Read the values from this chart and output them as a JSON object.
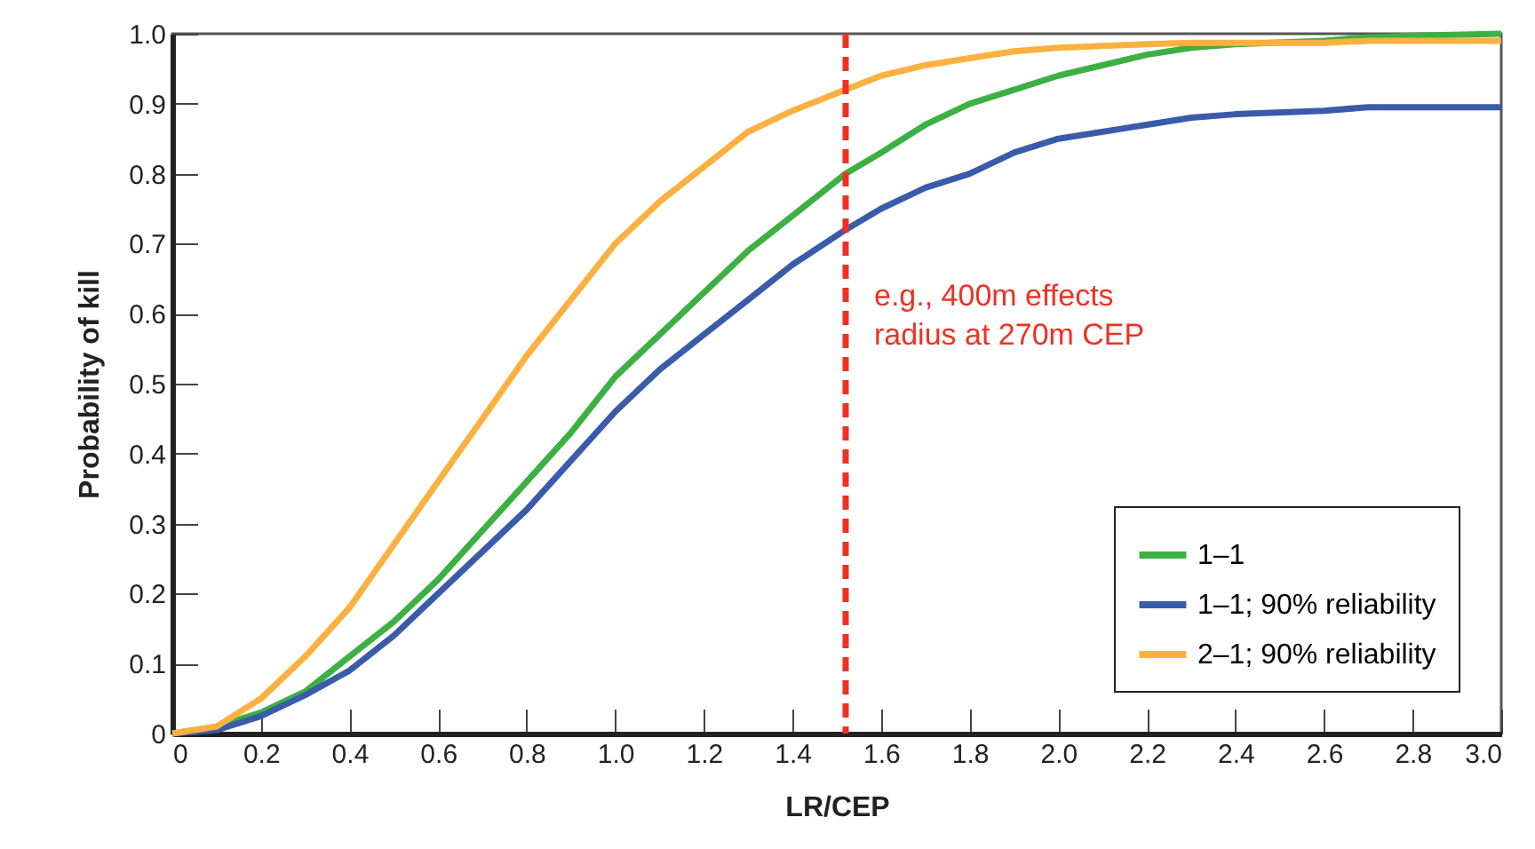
{
  "chart_data": {
    "type": "line",
    "xlabel": "LR/CEP",
    "ylabel": "Probability of kill",
    "x": [
      0,
      0.1,
      0.2,
      0.3,
      0.4,
      0.5,
      0.6,
      0.7,
      0.8,
      0.9,
      1.0,
      1.1,
      1.2,
      1.3,
      1.4,
      1.52,
      1.6,
      1.7,
      1.8,
      1.9,
      2.0,
      2.2,
      2.3,
      2.4,
      2.6,
      2.7,
      2.8,
      3.0
    ],
    "series": [
      {
        "name": "1–1",
        "color": "#3cb043",
        "values": [
          0,
          0.01,
          0.03,
          0.06,
          0.11,
          0.16,
          0.22,
          0.29,
          0.36,
          0.43,
          0.51,
          0.57,
          0.63,
          0.69,
          0.74,
          0.8,
          0.83,
          0.87,
          0.9,
          0.92,
          0.94,
          0.97,
          0.98,
          0.985,
          0.99,
          0.995,
          0.997,
          1.0
        ]
      },
      {
        "name": "1–1; 90% reliability",
        "color": "#3a5ba9",
        "values": [
          0,
          0.005,
          0.025,
          0.055,
          0.09,
          0.14,
          0.2,
          0.26,
          0.32,
          0.39,
          0.46,
          0.52,
          0.57,
          0.62,
          0.67,
          0.72,
          0.75,
          0.78,
          0.8,
          0.83,
          0.85,
          0.87,
          0.88,
          0.885,
          0.89,
          0.895,
          0.895,
          0.895
        ]
      },
      {
        "name": "2–1; 90% reliability",
        "color": "#fbb040",
        "values": [
          0,
          0.01,
          0.05,
          0.11,
          0.18,
          0.27,
          0.36,
          0.45,
          0.54,
          0.62,
          0.7,
          0.76,
          0.81,
          0.86,
          0.89,
          0.92,
          0.94,
          0.955,
          0.965,
          0.975,
          0.98,
          0.985,
          0.987,
          0.987,
          0.987,
          0.99,
          0.99,
          0.99
        ]
      }
    ],
    "xlim": [
      0,
      3.0
    ],
    "xticks": [
      0,
      0.2,
      0.4,
      0.6,
      0.8,
      {
        "value": 1,
        "label": "1.0"
      },
      1.2,
      1.4,
      1.6,
      1.8,
      {
        "value": 2,
        "label": "2.0"
      },
      2.2,
      2.4,
      2.6,
      2.8,
      {
        "value": 3,
        "label": "3.0"
      }
    ],
    "ylim": [
      0,
      1.0
    ],
    "yticks": [
      0,
      0.1,
      0.2,
      0.3,
      0.4,
      0.5,
      0.6,
      0.7,
      0.8,
      0.9,
      {
        "value": 1,
        "label": "1.0"
      }
    ],
    "ref_lines": [
      {
        "axis": "x",
        "value": 1.52,
        "label": "e.g., 400m effects radius at 270m CEP",
        "color": "#ee3124",
        "line_style": "dashed"
      }
    ],
    "legend": "bottom right",
    "grid": false,
    "marker": "none",
    "line_style": "solid"
  }
}
